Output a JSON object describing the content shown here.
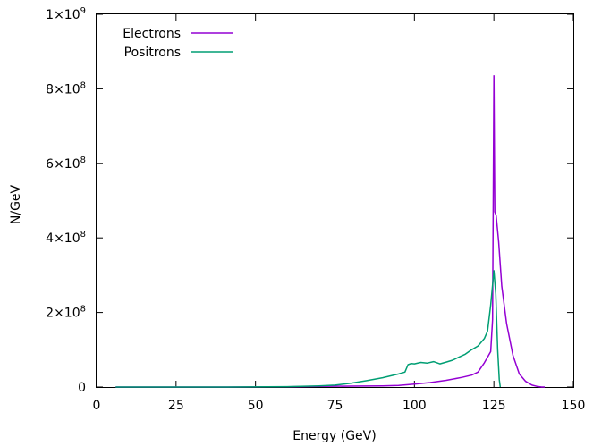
{
  "chart_data": {
    "type": "line",
    "title": "",
    "xlabel": "Energy (GeV)",
    "ylabel": "N/GeV",
    "xlim": [
      0,
      150
    ],
    "ylim": [
      0,
      1000000000
    ],
    "x_ticks": [
      0,
      25,
      50,
      75,
      100,
      125,
      150
    ],
    "x_tick_labels": [
      "0",
      "25",
      "50",
      "75",
      "100",
      "125",
      "150"
    ],
    "y_ticks": [
      0,
      200000000,
      400000000,
      600000000,
      800000000,
      1000000000
    ],
    "y_tick_labels": [
      {
        "mantissa": "0",
        "exp": ""
      },
      {
        "mantissa": "2×10",
        "exp": "8"
      },
      {
        "mantissa": "4×10",
        "exp": "8"
      },
      {
        "mantissa": "6×10",
        "exp": "8"
      },
      {
        "mantissa": "8×10",
        "exp": "8"
      },
      {
        "mantissa": "1×10",
        "exp": "9"
      }
    ],
    "grid": false,
    "legend_position": "top-left",
    "series": [
      {
        "name": "Electrons",
        "color": "#9400d3",
        "x": [
          6,
          20,
          40,
          60,
          70,
          80,
          90,
          95,
          100,
          105,
          110,
          115,
          118,
          120,
          122,
          123,
          124,
          124.6,
          125,
          125.3,
          125.7,
          126.5,
          127.5,
          129,
          131,
          133,
          135,
          137,
          138.5,
          140,
          141
        ],
        "y": [
          0,
          0,
          0,
          500000,
          2000000,
          2500000,
          3000000,
          4000000,
          8000000,
          12000000,
          18000000,
          26000000,
          32000000,
          40000000,
          65000000,
          80000000,
          95000000,
          180000000,
          835000000,
          470000000,
          460000000,
          390000000,
          270000000,
          170000000,
          85000000,
          35000000,
          15000000,
          5000000,
          2000000,
          0,
          0
        ]
      },
      {
        "name": "Positrons",
        "color": "#009e73",
        "x": [
          6,
          20,
          40,
          60,
          70,
          75,
          80,
          85,
          90,
          95,
          97,
          98,
          99,
          100,
          102,
          104,
          106,
          108,
          110,
          112,
          114,
          116,
          118,
          120,
          122,
          123,
          124,
          125,
          125.6,
          126.2,
          126.7,
          127
        ],
        "y": [
          0,
          0,
          0,
          1000000,
          3000000,
          5000000,
          10000000,
          17000000,
          25000000,
          35000000,
          40000000,
          60000000,
          63000000,
          62000000,
          66000000,
          64000000,
          68000000,
          62000000,
          67000000,
          72000000,
          80000000,
          88000000,
          100000000,
          110000000,
          130000000,
          150000000,
          220000000,
          312000000,
          250000000,
          100000000,
          20000000,
          0
        ]
      }
    ]
  }
}
